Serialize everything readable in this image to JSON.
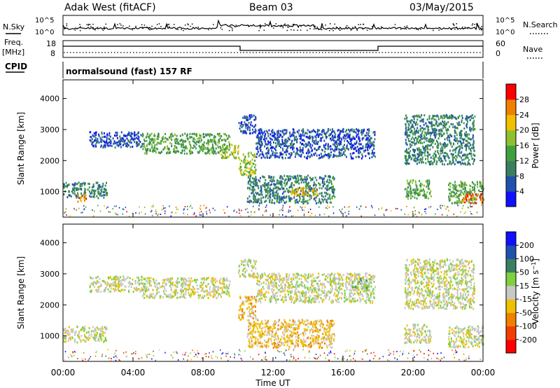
{
  "header": {
    "station": "Adak West (fitACF)",
    "beam": "Beam 03",
    "date": "03/May/2015"
  },
  "noise_panel": {
    "left_label": "N.Sky",
    "right_label": "N.Search",
    "yticks_left": [
      "10^5",
      "10^0"
    ],
    "yticks_right": [
      "10^5",
      "10^0"
    ]
  },
  "freq_panel": {
    "left_label_1": "Freq.",
    "left_label_2": "[MHz]",
    "right_label": "Nave",
    "yticks_left": [
      "18",
      "8"
    ],
    "yticks_right": [
      "60",
      "0"
    ],
    "cpid_label": "CPID",
    "cpid_text": "normalsound (fast) 157 RF"
  },
  "chart_data": [
    {
      "type": "heatmap",
      "name": "power",
      "xlabel": "Time UT",
      "ylabel": "Slant Range [km]",
      "xlim": [
        0,
        24
      ],
      "ylim": [
        180,
        4600
      ],
      "xticks": [
        "00:00",
        "04:00",
        "08:00",
        "12:00",
        "16:00",
        "20:00",
        "00:00"
      ],
      "yticks": [
        1000,
        2000,
        3000,
        4000
      ],
      "colorbar": {
        "label": "Power [dB]",
        "ticks": [
          4,
          8,
          12,
          16,
          20,
          24,
          28
        ],
        "colors": [
          "#1010ff",
          "#2050b0",
          "#3a8060",
          "#40a040",
          "#90c030",
          "#f0c000",
          "#f08000",
          "#ff0000"
        ]
      },
      "regions": [
        {
          "t": [
            0.0,
            2.5
          ],
          "r": [
            820,
            1330
          ],
          "level": 2
        },
        {
          "t": [
            0.8,
            1.3
          ],
          "r": [
            700,
            950
          ],
          "level": 6
        },
        {
          "t": [
            1.5,
            4.5
          ],
          "r": [
            2450,
            2950
          ],
          "level": 1
        },
        {
          "t": [
            4.5,
            9.5
          ],
          "r": [
            2250,
            2900
          ],
          "level": 3
        },
        {
          "t": [
            9.0,
            10.0
          ],
          "r": [
            2100,
            2550
          ],
          "level": 4
        },
        {
          "t": [
            10.0,
            11.0
          ],
          "r": [
            1550,
            2300
          ],
          "level": 4
        },
        {
          "t": [
            10.0,
            11.0
          ],
          "r": [
            2900,
            3500
          ],
          "level": 1
        },
        {
          "t": [
            11.0,
            17.8
          ],
          "r": [
            2100,
            3050
          ],
          "level": 1
        },
        {
          "t": [
            10.5,
            15.5
          ],
          "r": [
            650,
            1550
          ],
          "level": 2
        },
        {
          "t": [
            13.0,
            14.5
          ],
          "r": [
            900,
            1150
          ],
          "level": 5
        },
        {
          "t": [
            19.5,
            23.5
          ],
          "r": [
            1900,
            3500
          ],
          "level": 2
        },
        {
          "t": [
            19.5,
            21.0
          ],
          "r": [
            800,
            1400
          ],
          "level": 3
        },
        {
          "t": [
            22.0,
            24.0
          ],
          "r": [
            650,
            1350
          ],
          "level": 3
        },
        {
          "t": [
            22.8,
            24.0
          ],
          "r": [
            650,
            950
          ],
          "level": 6
        }
      ]
    },
    {
      "type": "heatmap",
      "name": "velocity",
      "xlabel": "Time UT",
      "ylabel": "Slant Range [km]",
      "xlim": [
        0,
        24
      ],
      "ylim": [
        180,
        4600
      ],
      "xticks": [
        "00:00",
        "04:00",
        "08:00",
        "12:00",
        "16:00",
        "20:00",
        "00:00"
      ],
      "yticks": [
        1000,
        2000,
        3000,
        4000
      ],
      "colorbar": {
        "label": "Velocity [m s^-1]",
        "ticks": [
          200,
          100,
          50,
          15,
          -15,
          -50,
          -100,
          -200
        ],
        "colors": [
          "#1010ff",
          "#2050b0",
          "#3a8060",
          "#7ed040",
          "#c8c8c8",
          "#f0c000",
          "#f08000",
          "#f04000",
          "#ff0000"
        ]
      },
      "regions": [
        {
          "t": [
            0.0,
            2.5
          ],
          "r": [
            820,
            1330
          ],
          "level": 4
        },
        {
          "t": [
            1.5,
            4.5
          ],
          "r": [
            2450,
            2950
          ],
          "level": 4
        },
        {
          "t": [
            4.5,
            9.5
          ],
          "r": [
            2250,
            2900
          ],
          "level": 4
        },
        {
          "t": [
            10.0,
            11.0
          ],
          "r": [
            1550,
            2300
          ],
          "level": 5
        },
        {
          "t": [
            10.0,
            11.0
          ],
          "r": [
            2900,
            3500
          ],
          "level": 4
        },
        {
          "t": [
            11.0,
            17.8
          ],
          "r": [
            2100,
            3050
          ],
          "level": 4
        },
        {
          "t": [
            10.5,
            15.5
          ],
          "r": [
            650,
            1550
          ],
          "level": 5
        },
        {
          "t": [
            16.5,
            17.5
          ],
          "r": [
            2500,
            2900
          ],
          "level": 3
        },
        {
          "t": [
            19.5,
            23.5
          ],
          "r": [
            1900,
            3500
          ],
          "level": 4
        },
        {
          "t": [
            19.5,
            21.0
          ],
          "r": [
            800,
            1400
          ],
          "level": 4
        },
        {
          "t": [
            22.0,
            24.0
          ],
          "r": [
            650,
            1350
          ],
          "level": 4
        }
      ]
    }
  ]
}
